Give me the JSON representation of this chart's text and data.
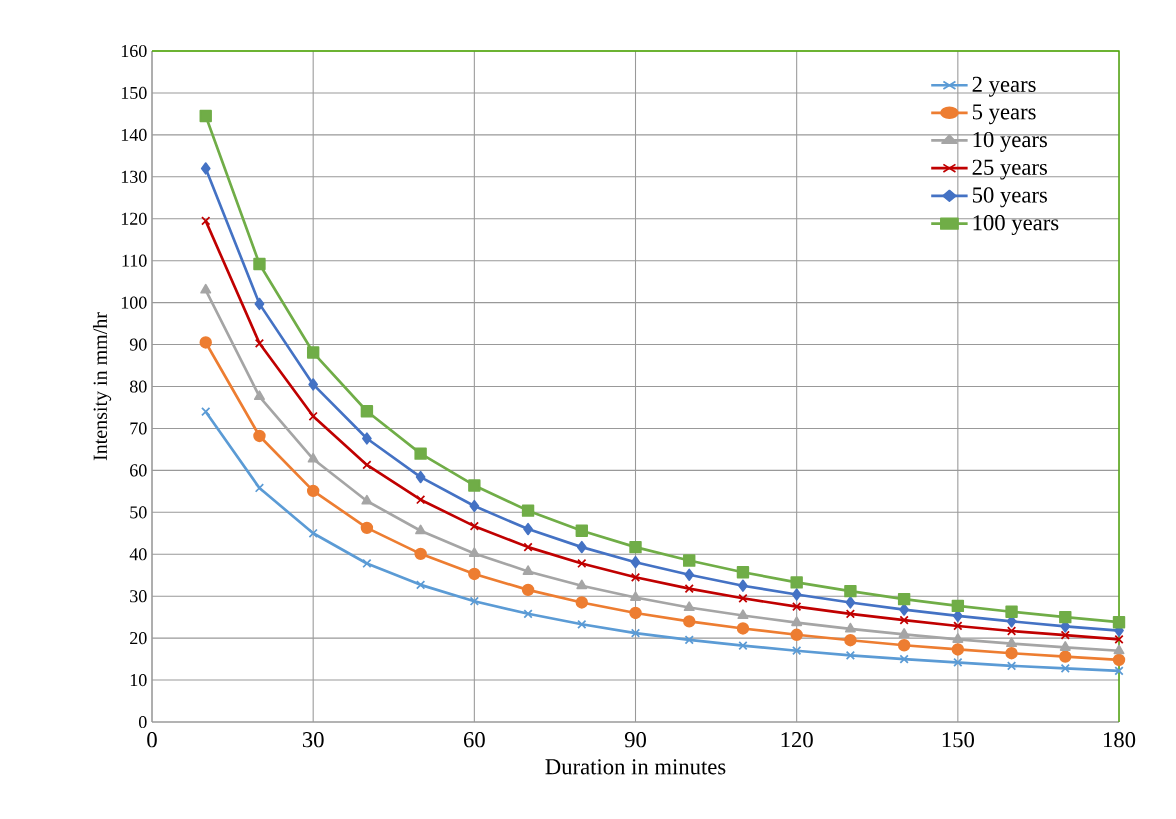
{
  "chart_data": {
    "type": "line",
    "xlabel": "Duration in minutes",
    "ylabel": "Intensity in mm/hr",
    "x": [
      10,
      20,
      30,
      40,
      50,
      60,
      70,
      80,
      90,
      100,
      110,
      120,
      130,
      140,
      150,
      160,
      170,
      180
    ],
    "series": [
      {
        "name": "2 years",
        "color": "#5b9bd5",
        "marker": "cross",
        "values": [
          74,
          55.8,
          45,
          37.8,
          32.7,
          28.8,
          25.8,
          23.3,
          21.2,
          19.6,
          18.2,
          17,
          15.9,
          15,
          14.2,
          13.4,
          12.8,
          12.2
        ]
      },
      {
        "name": "5 years",
        "color": "#ed7d31",
        "marker": "circle",
        "values": [
          90.5,
          68.2,
          55.1,
          46.3,
          40.1,
          35.3,
          31.5,
          28.5,
          26,
          24,
          22.3,
          20.8,
          19.5,
          18.3,
          17.3,
          16.4,
          15.6,
          14.8
        ]
      },
      {
        "name": "10 years",
        "color": "#a5a5a5",
        "marker": "triangle",
        "values": [
          103,
          77.6,
          62.7,
          52.7,
          45.6,
          40.2,
          35.9,
          32.5,
          29.7,
          27.3,
          25.4,
          23.7,
          22.2,
          20.9,
          19.7,
          18.7,
          17.8,
          17
        ]
      },
      {
        "name": "25 years",
        "color": "#c00000",
        "marker": "cross",
        "values": [
          119.5,
          90.3,
          72.9,
          61.3,
          53,
          46.7,
          41.7,
          37.8,
          34.5,
          31.8,
          29.5,
          27.5,
          25.8,
          24.3,
          22.9,
          21.7,
          20.7,
          19.7
        ]
      },
      {
        "name": "50 years",
        "color": "#4472c4",
        "marker": "diamond",
        "values": [
          132,
          99.7,
          80.5,
          67.6,
          58.4,
          51.5,
          46,
          41.7,
          38.1,
          35.1,
          32.5,
          30.4,
          28.5,
          26.8,
          25.3,
          24,
          22.8,
          21.8
        ]
      },
      {
        "name": "100 years",
        "color": "#70ad47",
        "marker": "square",
        "values": [
          144.5,
          109.2,
          88.1,
          74.1,
          64,
          56.4,
          50.4,
          45.6,
          41.7,
          38.5,
          35.7,
          33.3,
          31.2,
          29.3,
          27.7,
          26.3,
          25,
          23.8
        ]
      }
    ],
    "xlim": [
      0,
      180
    ],
    "xticks": [
      0,
      30,
      60,
      90,
      120,
      150,
      180
    ],
    "ylim": [
      0,
      160
    ],
    "yticks": [
      0,
      10,
      20,
      30,
      40,
      50,
      60,
      70,
      80,
      90,
      100,
      110,
      120,
      130,
      140,
      150,
      160
    ],
    "grid": true,
    "legend": "top right",
    "line_style": "solid"
  }
}
